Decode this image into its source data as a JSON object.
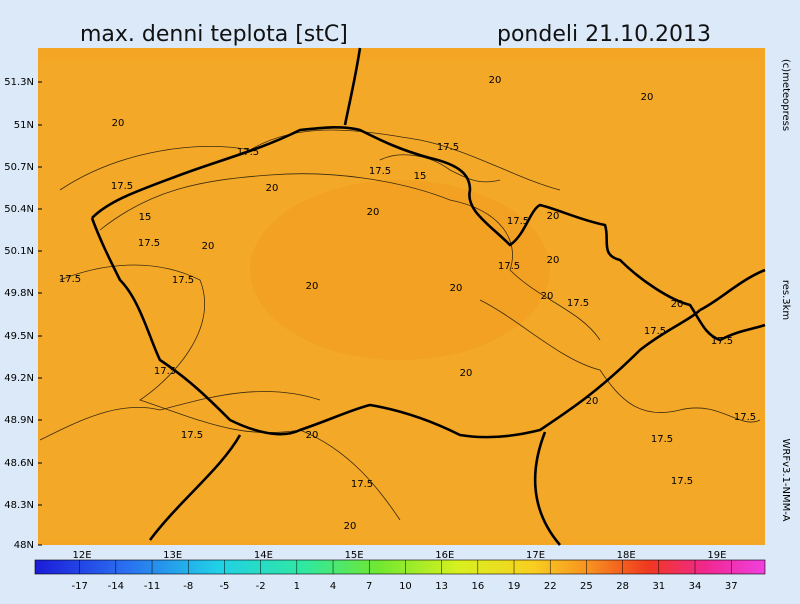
{
  "header": {
    "title": "max. denni teplota [stC]",
    "date": "pondeli 21.10.2013"
  },
  "side_texts": [
    "(c)meteopress",
    "res.3km",
    "WRFv3.1-NMM-A"
  ],
  "map": {
    "latitude_labels": [
      "51.3N",
      "51N",
      "50.7N",
      "50.4N",
      "50.1N",
      "49.8N",
      "49.5N",
      "49.2N",
      "48.9N",
      "48.6N",
      "48.3N",
      "48N"
    ],
    "longitude_labels": [
      "12E",
      "13E",
      "14E",
      "15E",
      "16E",
      "17E",
      "18E",
      "19E"
    ],
    "contour_labels": [
      20,
      20,
      20,
      17.5,
      17.5,
      17.5,
      15,
      17.5,
      20,
      20,
      15,
      17.5,
      20,
      17.5,
      20,
      17.5,
      20,
      17.5,
      17.5,
      20,
      20,
      20,
      17.5,
      20,
      17.5,
      17.5,
      17.5,
      20,
      20,
      17.5,
      17.5,
      17.5,
      20,
      17.5,
      17.5,
      20
    ]
  },
  "colorbar": {
    "range": [
      -20.7,
      39.8
    ],
    "ticks": [
      -17,
      -14,
      -11,
      -8,
      -5,
      -2,
      1,
      4,
      7,
      10,
      13,
      16,
      19,
      22,
      25,
      28,
      31,
      34,
      37
    ]
  }
}
